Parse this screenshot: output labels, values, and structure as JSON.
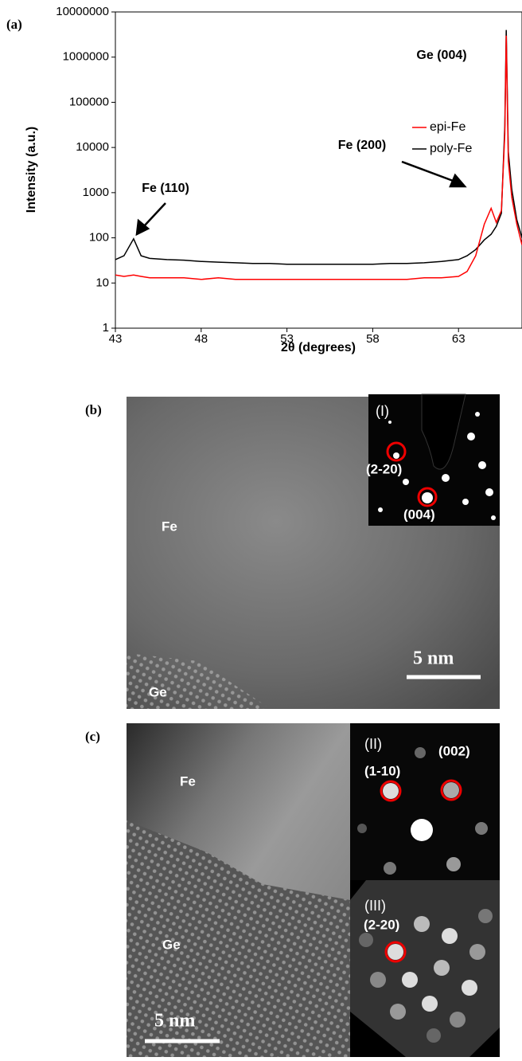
{
  "chart_data": {
    "type": "line",
    "panel_label": "(a)",
    "ylabel": "Intensity (a.u.)",
    "xlabel": "2θ (degrees)",
    "log_y": true,
    "legend": "right",
    "x": [
      43,
      43.5,
      44.06,
      44.5,
      45,
      46,
      47,
      48,
      49,
      50,
      51,
      52,
      53,
      54,
      55,
      56,
      57,
      58,
      59,
      60,
      61,
      62,
      63,
      63.5,
      64,
      64.5,
      64.9,
      65.2,
      65.5,
      65.7,
      65.78,
      65.9,
      66.1,
      66.4,
      66.7
    ],
    "series": [
      {
        "name": "epi-Fe",
        "color": "#ff0000",
        "values": [
          15,
          14,
          15,
          14,
          13,
          13,
          13,
          12,
          13,
          12,
          12,
          12,
          12,
          12,
          12,
          12,
          12,
          12,
          12,
          12,
          13,
          13,
          14,
          18,
          40,
          200,
          450,
          220,
          400,
          20000,
          3000000,
          5000,
          800,
          200,
          70
        ]
      },
      {
        "name": "poly-Fe",
        "color": "#000000",
        "values": [
          33,
          40,
          95,
          40,
          35,
          33,
          32,
          30,
          29,
          28,
          27,
          27,
          26,
          26,
          26,
          26,
          26,
          26,
          27,
          27,
          28,
          30,
          33,
          40,
          55,
          90,
          120,
          180,
          350,
          30000,
          4000000,
          8000,
          1200,
          250,
          100
        ]
      }
    ],
    "xlim": [
      43,
      66.7
    ],
    "xticks": [
      43,
      48,
      53,
      58,
      63
    ],
    "ylim": [
      1,
      10000000
    ],
    "yticks": [
      1,
      10,
      100,
      1000,
      10000,
      100000,
      1000000,
      10000000
    ],
    "annotations": [
      "Ge (004)",
      "Fe (200)",
      "Fe (110)"
    ]
  },
  "images": [
    {
      "label": "(b)",
      "texts": [
        "Fe",
        "Ge",
        "5 nm",
        "(I)",
        "(2-20)",
        "(004)"
      ]
    },
    {
      "label": "(c)",
      "texts": [
        "Fe",
        "Ge",
        "5 nm",
        "(II)",
        "(002)",
        "(1-10)",
        "(III)",
        "(2-20)"
      ]
    }
  ]
}
